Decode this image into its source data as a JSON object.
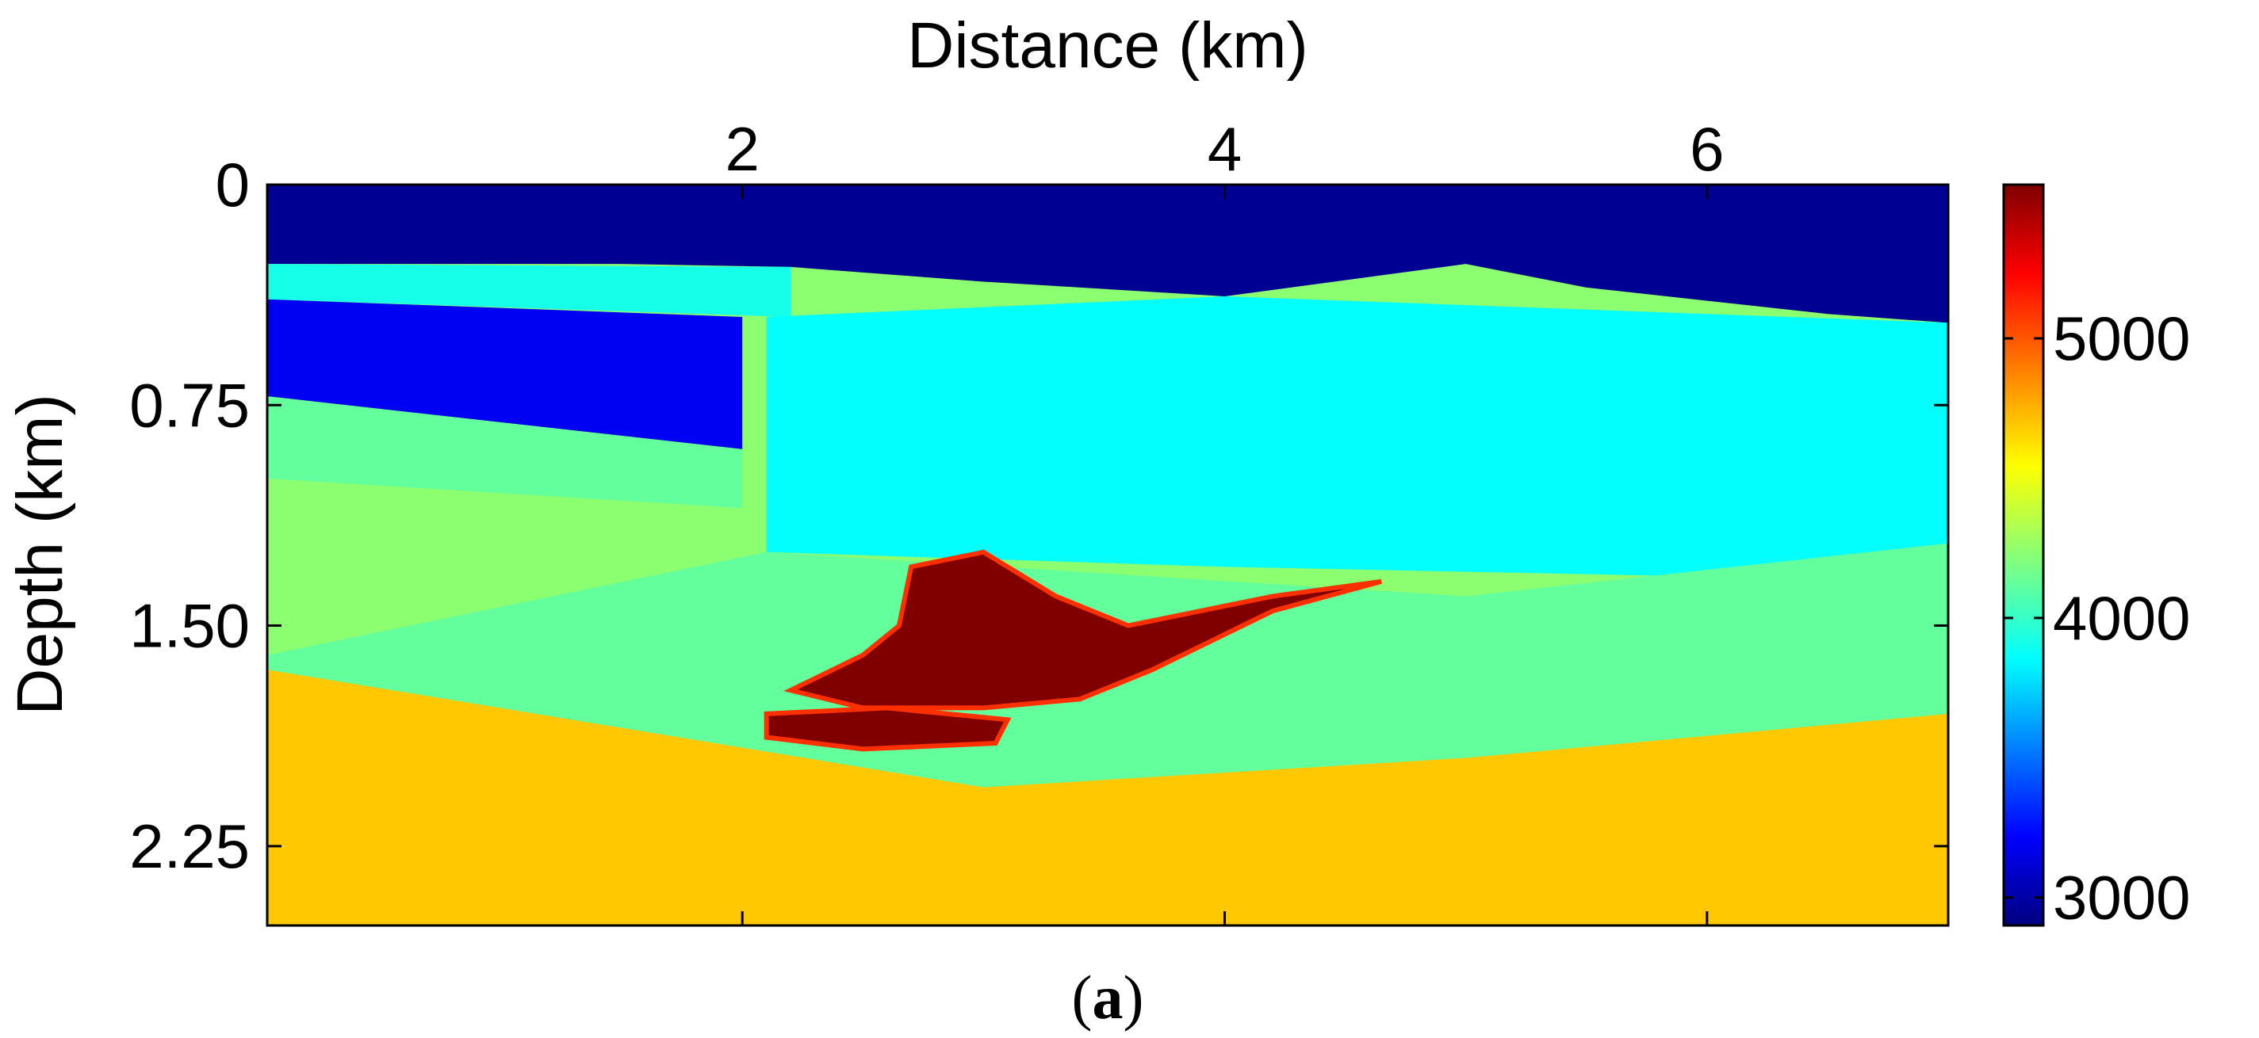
{
  "chart_data": {
    "type": "heatmap",
    "title": "",
    "xlabel": "Distance (km)",
    "ylabel": "Depth (km)",
    "xlim": [
      0.03,
      7.0
    ],
    "ylim": [
      0,
      2.52
    ],
    "x_ticks": [
      2,
      4,
      6
    ],
    "x_tick_labels": [
      "2",
      "4",
      "6"
    ],
    "y_ticks": [
      0,
      0.75,
      1.5,
      2.25
    ],
    "y_tick_labels": [
      "0",
      "0.75",
      "1.50",
      "2.25"
    ],
    "x_axis_position": "top",
    "y_axis_reversed": true,
    "grid": false,
    "colorbar": {
      "colormap": "jet",
      "range": [
        2900,
        5550
      ],
      "ticks": [
        3000,
        4000,
        5000
      ],
      "tick_labels": [
        "3000",
        "4000",
        "5000"
      ],
      "position": "right"
    },
    "layers": [
      {
        "name": "water",
        "value": 2950,
        "top": [
          [
            0.03,
            0
          ],
          [
            7,
            0
          ]
        ],
        "base": [
          [
            0.03,
            0.27
          ],
          [
            1.5,
            0.27
          ],
          [
            2.2,
            0.28
          ],
          [
            3,
            0.33
          ],
          [
            4,
            0.38
          ],
          [
            5,
            0.27
          ],
          [
            5.5,
            0.35
          ],
          [
            6.5,
            0.44
          ],
          [
            7,
            0.47
          ]
        ]
      },
      {
        "name": "shallow-left",
        "value": 3950,
        "top": [
          [
            0.03,
            0.27
          ],
          [
            2.2,
            0.28
          ]
        ],
        "base": [
          [
            0.03,
            0.39
          ],
          [
            2.2,
            0.45
          ]
        ]
      },
      {
        "name": "dark-left",
        "value": 3200,
        "top": [
          [
            0.03,
            0.39
          ],
          [
            2.0,
            0.45
          ]
        ],
        "base": [
          [
            0.03,
            0.72
          ],
          [
            2.0,
            0.9
          ]
        ]
      },
      {
        "name": "green-left",
        "value": 4150,
        "top": [
          [
            0.03,
            0.72
          ],
          [
            2.0,
            0.9
          ]
        ],
        "base": [
          [
            0.03,
            1.0
          ],
          [
            2.0,
            1.1
          ]
        ]
      },
      {
        "name": "mid-right",
        "value": 3900,
        "top": [
          [
            2.1,
            0.45
          ],
          [
            4,
            0.38
          ],
          [
            7,
            0.47
          ]
        ],
        "base": [
          [
            2.1,
            1.25
          ],
          [
            4,
            1.3
          ],
          [
            7,
            1.35
          ]
        ]
      },
      {
        "name": "green-mid",
        "value": 4150,
        "top": [
          [
            0.03,
            1.6
          ],
          [
            2.1,
            1.25
          ],
          [
            5,
            1.4
          ],
          [
            7,
            1.22
          ]
        ],
        "base": [
          [
            0.03,
            2.52
          ],
          [
            7,
            2.52
          ]
        ]
      },
      {
        "name": "yellow-basement",
        "value": 4700,
        "top": [
          [
            0.03,
            1.65
          ],
          [
            3,
            2.05
          ],
          [
            5,
            1.95
          ],
          [
            7,
            1.8
          ]
        ],
        "base": [
          [
            0.03,
            2.52
          ],
          [
            7,
            2.52
          ]
        ]
      }
    ],
    "salt_bodies": [
      {
        "name": "salt-main",
        "value": 5550,
        "outline": [
          [
            2.65,
            1.5
          ],
          [
            2.7,
            1.3
          ],
          [
            3.0,
            1.25
          ],
          [
            3.3,
            1.4
          ],
          [
            3.6,
            1.5
          ],
          [
            4.2,
            1.4
          ],
          [
            4.65,
            1.35
          ],
          [
            4.2,
            1.45
          ],
          [
            3.7,
            1.65
          ],
          [
            3.4,
            1.75
          ],
          [
            3.0,
            1.78
          ],
          [
            2.5,
            1.78
          ],
          [
            2.2,
            1.72
          ],
          [
            2.5,
            1.6
          ]
        ]
      },
      {
        "name": "salt-lower",
        "value": 5550,
        "outline": [
          [
            2.1,
            1.8
          ],
          [
            2.6,
            1.78
          ],
          [
            3.1,
            1.82
          ],
          [
            3.05,
            1.9
          ],
          [
            2.5,
            1.92
          ],
          [
            2.1,
            1.88
          ]
        ]
      }
    ]
  }
}
